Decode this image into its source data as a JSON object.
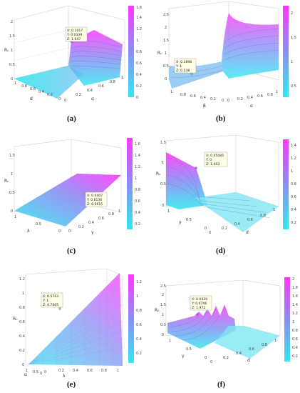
{
  "colors": {
    "low": "#33e8f0",
    "mid": "#8a8ef2",
    "high": "#ff36ff",
    "box": "#bdbdbd"
  },
  "panels": [
    {
      "label": "(a)",
      "zlabel": "Rₙ",
      "xlabel": "d",
      "ylabel": "α",
      "zticks": [
        "0",
        "0.5",
        "1",
        "1.5",
        "2"
      ],
      "xticks": [
        "1",
        "0.8",
        "0.6",
        "0.4",
        "0.2",
        "0"
      ],
      "yticks": [
        "0",
        "0.2",
        "0.4",
        "0.6",
        "0.8",
        "1"
      ],
      "colorbar_ticks": [
        "0",
        "0.2",
        "0.4",
        "0.6",
        "0.8",
        "1",
        "1.2",
        "1.4",
        "1.6"
      ],
      "datatip": [
        "X: 0.1017",
        "Y: 0.0339",
        "Z: 1.647"
      ]
    },
    {
      "label": "(b)",
      "zlabel": "Rₙ",
      "xlabel": "β",
      "ylabel": "α",
      "zticks": [
        "0",
        "0.5",
        "1",
        "1.5",
        "2",
        "2.5"
      ],
      "xticks": [
        "1",
        "0.8",
        "0.6",
        "0.4",
        "0.2",
        "0"
      ],
      "yticks": [
        "0",
        "0.2",
        "0.4",
        "0.6",
        "0.8",
        "1"
      ],
      "colorbar_ticks": [
        "0.5",
        "1",
        "1.5",
        "2"
      ],
      "datatip": [
        "X: 0.3898",
        "Y: 1",
        "Z: 0.538"
      ]
    },
    {
      "label": "(c)",
      "zlabel": "Rₙ",
      "xlabel": "λ",
      "ylabel": "γ",
      "zticks": [
        "0",
        "0.5",
        "1",
        "1.5"
      ],
      "xticks": [
        "1",
        "0.5",
        "0"
      ],
      "yticks": [
        "0",
        "0.2",
        "0.4",
        "0.6",
        "0.8",
        "1"
      ],
      "colorbar_ticks": [
        "0.2",
        "0.4",
        "0.6",
        "0.8",
        "1",
        "1.2",
        "1.4",
        "1.6"
      ],
      "datatip": [
        "X: 0.4407",
        "Y: 0.6136",
        "Z: 0.5615"
      ]
    },
    {
      "label": "(d)",
      "zlabel": "Rₙ",
      "xlabel": "d",
      "ylabel": "γ",
      "zticks": [
        "0",
        "0.5",
        "1",
        "1.5"
      ],
      "xticks": [
        "0",
        "0.2",
        "0.4",
        "0.6",
        "0.8",
        "1"
      ],
      "yticks": [
        "1",
        "0.5",
        "0"
      ],
      "colorbar_ticks": [
        "0.2",
        "0.4",
        "0.6",
        "0.8",
        "1",
        "1.2",
        "1.4"
      ],
      "datatip": [
        "X: 0.05085",
        "Y: 0",
        "Z: 1.403"
      ]
    },
    {
      "label": "(e)",
      "zlabel": "Rₙ",
      "xlabel": "λ",
      "ylabel": "α",
      "zticks": [
        "0",
        "0.2",
        "0.4",
        "0.6",
        "0.8",
        "1",
        "1.2"
      ],
      "xticks": [
        "0",
        "0.2",
        "0.4",
        "0.6",
        "0.8",
        "1"
      ],
      "yticks": [
        "1",
        "0.5",
        "0"
      ],
      "colorbar_ticks": [
        "0.2",
        "0.4",
        "0.6",
        "0.8",
        "1",
        "1.2"
      ],
      "datatip": [
        "X: 0.5763",
        "Y: 1",
        "Z: 0.7605"
      ]
    },
    {
      "label": "(f)",
      "zlabel": "Rₙ",
      "xlabel": "d",
      "ylabel": "γ",
      "zticks": [
        "0",
        "0.5",
        "1",
        "1.5",
        "2",
        "2.5"
      ],
      "xticks": [
        "0",
        "0.2",
        "0.4",
        "0.6",
        "0.8",
        "1"
      ],
      "yticks": [
        "1",
        "0.5",
        "0"
      ],
      "colorbar_ticks": [
        "0.2",
        "0.4",
        "0.6",
        "0.8",
        "1",
        "1.2",
        "1.4",
        "1.6",
        "1.8",
        "2"
      ],
      "datatip": [
        "X: 0.0339",
        "Y: 0.4746",
        "Z: 1.972"
      ]
    }
  ]
}
